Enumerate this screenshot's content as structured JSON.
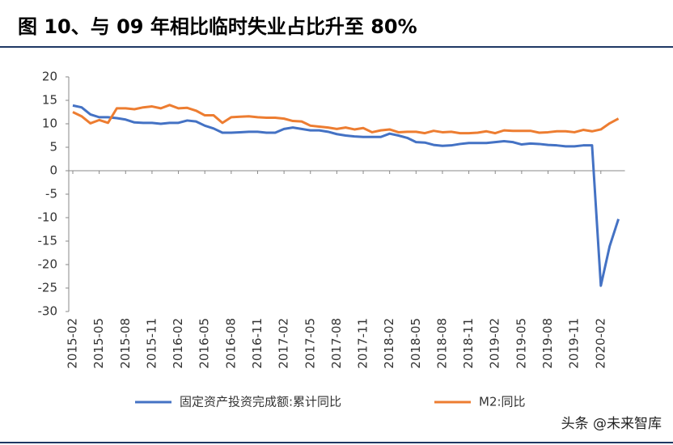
{
  "chart_data": {
    "type": "line",
    "title": "图 10、与 09 年相比临时失业占比升至 80%",
    "categories": [
      "2015-02",
      null,
      null,
      "2015-05",
      null,
      null,
      "2015-08",
      null,
      null,
      "2015-11",
      null,
      null,
      "2016-02",
      null,
      null,
      "2016-05",
      null,
      null,
      "2016-08",
      null,
      null,
      "2016-11",
      null,
      null,
      "2017-02",
      null,
      null,
      "2017-05",
      null,
      null,
      "2017-08",
      null,
      null,
      "2017-11",
      null,
      null,
      "2018-02",
      null,
      null,
      "2018-05",
      null,
      null,
      "2018-08",
      null,
      null,
      "2018-11",
      null,
      null,
      "2019-02",
      null,
      null,
      "2019-05",
      null,
      null,
      "2019-08",
      null,
      null,
      "2019-11",
      null,
      null,
      "2020-02",
      null,
      null
    ],
    "series": [
      {
        "name": "固定资产投资完成额:累计同比",
        "color": "#4472c4",
        "values": [
          13.9,
          13.5,
          12.0,
          11.4,
          11.4,
          11.2,
          10.9,
          10.3,
          10.2,
          10.2,
          10.0,
          10.2,
          10.2,
          10.7,
          10.5,
          9.6,
          9.0,
          8.1,
          8.1,
          8.2,
          8.3,
          8.3,
          8.1,
          8.1,
          8.9,
          9.2,
          8.9,
          8.6,
          8.6,
          8.3,
          7.8,
          7.5,
          7.3,
          7.2,
          7.2,
          7.2,
          7.9,
          7.5,
          7.0,
          6.1,
          6.0,
          5.5,
          5.3,
          5.4,
          5.7,
          5.9,
          5.9,
          5.9,
          6.1,
          6.3,
          6.1,
          5.6,
          5.8,
          5.7,
          5.5,
          5.4,
          5.2,
          5.2,
          5.4,
          5.4,
          -24.5,
          -16.1,
          -10.3
        ]
      },
      {
        "name": "M2:同比",
        "color": "#ed7d31",
        "values": [
          12.5,
          11.6,
          10.1,
          10.8,
          10.2,
          13.3,
          13.3,
          13.1,
          13.5,
          13.7,
          13.3,
          14.0,
          13.3,
          13.4,
          12.8,
          11.8,
          11.8,
          10.2,
          11.4,
          11.5,
          11.6,
          11.4,
          11.3,
          11.3,
          11.1,
          10.6,
          10.5,
          9.6,
          9.4,
          9.2,
          8.9,
          9.2,
          8.8,
          9.1,
          8.2,
          8.6,
          8.8,
          8.2,
          8.3,
          8.3,
          8.0,
          8.5,
          8.2,
          8.3,
          8.0,
          8.0,
          8.1,
          8.4,
          8.0,
          8.6,
          8.5,
          8.5,
          8.5,
          8.1,
          8.2,
          8.4,
          8.4,
          8.2,
          8.7,
          8.4,
          8.8,
          10.1,
          11.1
        ]
      }
    ],
    "ylim": [
      -30,
      20
    ],
    "yticks": [
      -30,
      -25,
      -20,
      -15,
      -10,
      -5,
      0,
      5,
      10,
      15,
      20
    ],
    "grid": false,
    "legend": "bottom",
    "watermark": "头条 @未来智库"
  }
}
